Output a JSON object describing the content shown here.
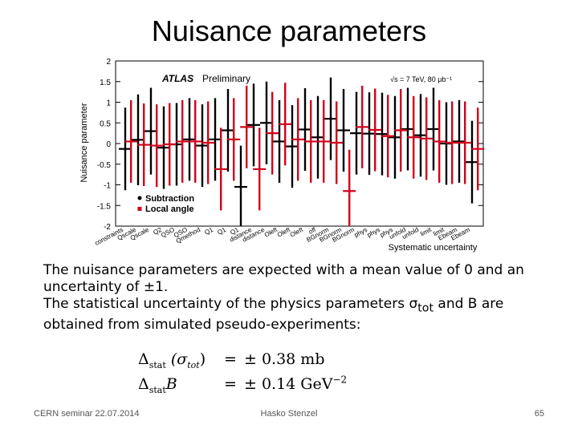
{
  "slide": {
    "title": "Nuisance parameters",
    "body_line1": "The nuisance parameters are expected with a mean value of 0 and an uncertainty of ±1.",
    "body_line2_prefix": "The statistical uncertainty of the physics parameters σ",
    "body_line2_sub": "tot",
    "body_line2_suffix": " and B are obtained from simulated pseudo-experiments:",
    "formula": {
      "delta": "Δ",
      "stat": "stat",
      "sigma_lhs": "(σ",
      "tot": "tot",
      "close": ")",
      "eq": "=",
      "value1": "± 0.38 mb",
      "b_lhs": "B",
      "value2_prefix": "± 0.14 GeV",
      "value2_exp": "−2"
    },
    "footer_left": "CERN seminar 22.07.2014",
    "footer_center": "Hasko Stenzel",
    "footer_right": "65"
  },
  "chart_data": {
    "type": "scatter",
    "title": "",
    "brand": "ATLAS",
    "status": "Preliminary",
    "energy_label": "√s = 7 TeV, 80 μb⁻¹",
    "xlabel": "Systematic uncertainty",
    "ylabel": "Nuisance parameter",
    "ylim": [
      -2,
      2
    ],
    "yticks": [
      2,
      1.5,
      1,
      0.5,
      0,
      -0.5,
      -1,
      -1.5,
      -2
    ],
    "categories": [
      "constraints",
      "Qscale",
      "Qscale",
      "Q2",
      "QSO",
      "QSO",
      "Qmethod",
      "Q1",
      "Q1",
      "Q1",
      "distance",
      "distance",
      "Oleft",
      "Oleft",
      "Oleft",
      "off",
      "BGnorm",
      "BGnorm",
      "BGnorm",
      "phys",
      "phys",
      "phys",
      "unfold",
      "unfold",
      "limit",
      "limit",
      "Ebeam",
      "Ebeam"
    ],
    "legend_placement": "bottom-left",
    "series": [
      {
        "name": "Subtraction",
        "color": "#000000",
        "values": [
          -0.13,
          0.09,
          0.3,
          -0.1,
          -0.02,
          0.1,
          -0.05,
          0.1,
          0.32,
          -1.05,
          0.45,
          0.5,
          0.05,
          -0.07,
          0.34,
          0.15,
          0.6,
          0.32,
          0.25,
          0.24,
          0.23,
          0.15,
          0.35,
          0.2,
          0.35,
          0.0,
          0.05,
          -0.45
        ],
        "errors": [
          1.0,
          1.1,
          1.05,
          1.0,
          1.0,
          1.0,
          1.0,
          1.0,
          1.0,
          1.0,
          1.0,
          1.0,
          1.0,
          1.0,
          1.0,
          1.0,
          1.0,
          1.0,
          1.0,
          1.0,
          1.0,
          1.0,
          1.0,
          1.0,
          1.0,
          1.0,
          1.0,
          1.0
        ]
      },
      {
        "name": "Local angle",
        "color": "#d0021b",
        "values": [
          0.05,
          -0.03,
          -0.05,
          -0.02,
          0.05,
          0.05,
          0.02,
          -0.62,
          0.1,
          0.4,
          -0.62,
          0.25,
          0.47,
          0.1,
          0.05,
          0.05,
          0.02,
          -1.15,
          0.4,
          0.33,
          0.18,
          0.32,
          0.15,
          0.12,
          0.05,
          0.02,
          0.02,
          -0.13
        ],
        "errors": [
          1.0,
          1.0,
          1.0,
          1.0,
          1.0,
          1.0,
          1.0,
          1.0,
          1.0,
          1.0,
          1.0,
          1.0,
          1.0,
          1.0,
          1.0,
          1.0,
          1.0,
          1.0,
          1.0,
          1.0,
          1.0,
          1.0,
          1.0,
          1.0,
          1.0,
          1.0,
          1.0,
          1.0
        ]
      }
    ]
  }
}
